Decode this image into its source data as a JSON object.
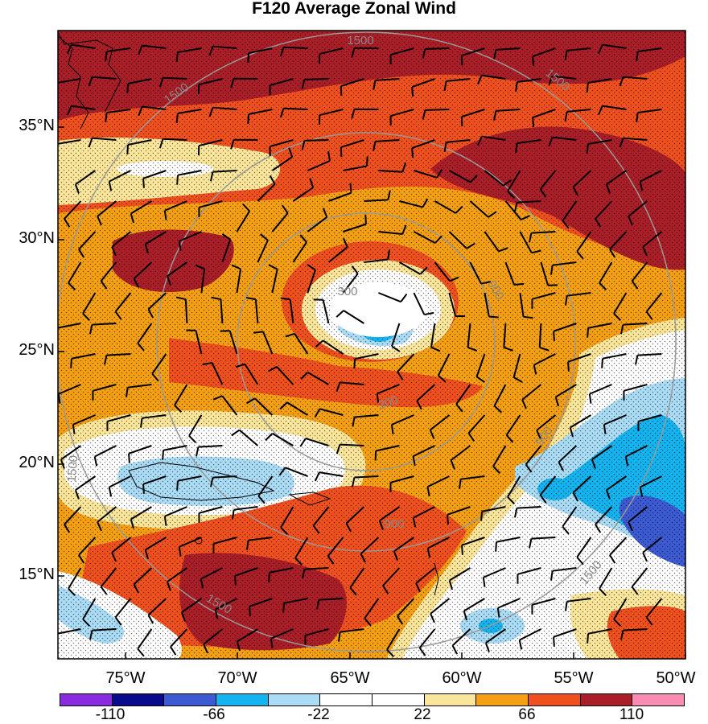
{
  "title": "F120 Average Zonal Wind",
  "latitude_labels": [
    "35°N",
    "30°N",
    "25°N",
    "20°N",
    "15°N"
  ],
  "longitude_labels": [
    "75°W",
    "70°W",
    "65°W",
    "60°W",
    "55°W",
    "50°W"
  ],
  "range_ring_labels": [
    "300",
    "300",
    "900",
    "900",
    "900",
    "1500",
    "1500",
    "1500",
    "1500",
    "1500",
    "1500"
  ],
  "colorbar": {
    "labels": [
      "-110",
      "-66",
      "-22",
      "22",
      "66",
      "110"
    ],
    "colors": [
      "#8a2be2",
      "#0a0a8c",
      "#3c5ad2",
      "#14b4f0",
      "#aadcf5",
      "#ffffff",
      "#ffffff",
      "#fae69b",
      "#f5a014",
      "#f0501e",
      "#aa1e28",
      "#fa8cb4"
    ]
  },
  "palette": {
    "dark_red": "#aa1e28",
    "red_orange": "#f0501e",
    "orange": "#f5a014",
    "pale_yellow": "#fae69b",
    "white": "#ffffff",
    "light_blue": "#aadcf5",
    "cyan": "#14b4f0",
    "blue": "#3c5ad2"
  }
}
